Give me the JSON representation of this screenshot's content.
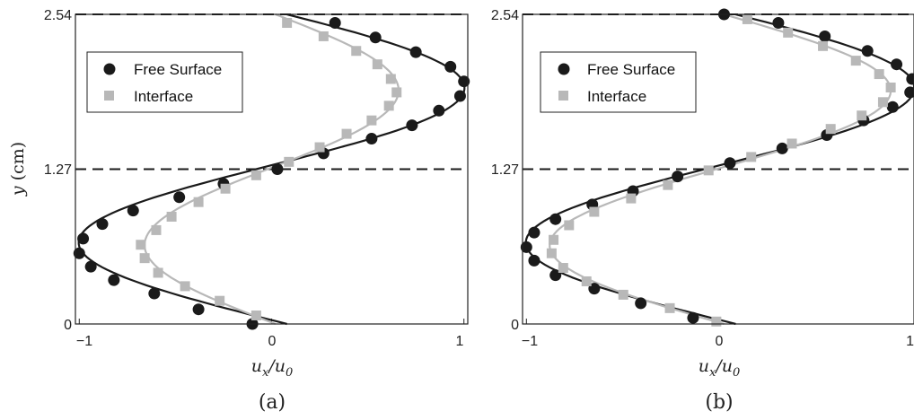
{
  "chart_data": [
    {
      "type": "scatter",
      "caption": "(a)",
      "xlim": [
        -1.02,
        1.02
      ],
      "ylim": [
        0,
        2.54
      ],
      "xticks": [
        "−1",
        "0",
        "1"
      ],
      "yticks": [
        "0",
        "1.27",
        "2.54"
      ],
      "xlabel_main": "u",
      "xlabel_sub1": "x",
      "xlabel_slash": "/u",
      "xlabel_sub2": "0",
      "ylabel_var": "y",
      "ylabel_unit": " (cm)",
      "hlines": [
        1.27,
        2.54
      ],
      "legend_position": "top-left",
      "series": [
        {
          "name": "Free Surface",
          "marker": "circle",
          "color": "#1a1a1a",
          "amplitude": 1.0,
          "points": [
            [
              -0.1,
              0.0
            ],
            [
              -0.38,
              0.12
            ],
            [
              -0.61,
              0.25
            ],
            [
              -0.82,
              0.36
            ],
            [
              -0.94,
              0.47
            ],
            [
              -1.0,
              0.58
            ],
            [
              -0.98,
              0.7
            ],
            [
              -0.88,
              0.82
            ],
            [
              -0.72,
              0.93
            ],
            [
              -0.48,
              1.04
            ],
            [
              -0.25,
              1.15
            ],
            [
              0.03,
              1.27
            ],
            [
              0.27,
              1.4
            ],
            [
              0.52,
              1.52
            ],
            [
              0.73,
              1.63
            ],
            [
              0.87,
              1.75
            ],
            [
              0.98,
              1.87
            ],
            [
              1.0,
              1.99
            ],
            [
              0.93,
              2.11
            ],
            [
              0.75,
              2.23
            ],
            [
              0.54,
              2.35
            ],
            [
              0.33,
              2.47
            ]
          ]
        },
        {
          "name": "Interface",
          "marker": "square",
          "color": "#b8b8b8",
          "amplitude": 0.66,
          "points": [
            [
              -0.08,
              0.07
            ],
            [
              -0.27,
              0.19
            ],
            [
              -0.45,
              0.31
            ],
            [
              -0.59,
              0.42
            ],
            [
              -0.66,
              0.54
            ],
            [
              -0.68,
              0.65
            ],
            [
              -0.6,
              0.77
            ],
            [
              -0.52,
              0.88
            ],
            [
              -0.38,
              1.0
            ],
            [
              -0.24,
              1.11
            ],
            [
              -0.08,
              1.22
            ],
            [
              0.09,
              1.33
            ],
            [
              0.25,
              1.45
            ],
            [
              0.39,
              1.56
            ],
            [
              0.52,
              1.67
            ],
            [
              0.61,
              1.79
            ],
            [
              0.65,
              1.9
            ],
            [
              0.62,
              2.01
            ],
            [
              0.55,
              2.13
            ],
            [
              0.44,
              2.24
            ],
            [
              0.27,
              2.36
            ],
            [
              0.08,
              2.47
            ]
          ]
        }
      ]
    },
    {
      "type": "scatter",
      "caption": "(b)",
      "xlim": [
        -1.02,
        1.0
      ],
      "ylim": [
        0,
        2.54
      ],
      "xticks": [
        "−1",
        "0",
        "1"
      ],
      "yticks": [
        "0",
        "1.27",
        "2.54"
      ],
      "xlabel_main": "u",
      "xlabel_sub1": "x",
      "xlabel_slash": "/u",
      "xlabel_sub2": "0",
      "hlines": [
        1.27,
        2.54
      ],
      "legend_position": "top-left",
      "series": [
        {
          "name": "Free Surface",
          "marker": "circle",
          "color": "#1a1a1a",
          "amplitude": 1.0,
          "points": [
            [
              -0.14,
              0.05
            ],
            [
              -0.41,
              0.17
            ],
            [
              -0.65,
              0.29
            ],
            [
              -0.85,
              0.4
            ],
            [
              -0.96,
              0.52
            ],
            [
              -1.0,
              0.63
            ],
            [
              -0.96,
              0.75
            ],
            [
              -0.85,
              0.86
            ],
            [
              -0.66,
              0.98
            ],
            [
              -0.45,
              1.09
            ],
            [
              -0.22,
              1.21
            ],
            [
              0.05,
              1.32
            ],
            [
              0.32,
              1.44
            ],
            [
              0.55,
              1.55
            ],
            [
              0.74,
              1.67
            ],
            [
              0.89,
              1.78
            ],
            [
              0.98,
              1.9
            ],
            [
              0.99,
              2.01
            ],
            [
              0.91,
              2.13
            ],
            [
              0.76,
              2.24
            ],
            [
              0.54,
              2.36
            ],
            [
              0.3,
              2.47
            ],
            [
              0.02,
              2.54
            ]
          ]
        },
        {
          "name": "Interface",
          "marker": "square",
          "color": "#b8b8b8",
          "amplitude": 0.88,
          "points": [
            [
              -0.02,
              0.02
            ],
            [
              -0.26,
              0.13
            ],
            [
              -0.5,
              0.24
            ],
            [
              -0.69,
              0.35
            ],
            [
              -0.81,
              0.46
            ],
            [
              -0.87,
              0.58
            ],
            [
              -0.86,
              0.69
            ],
            [
              -0.78,
              0.81
            ],
            [
              -0.65,
              0.92
            ],
            [
              -0.46,
              1.03
            ],
            [
              -0.27,
              1.14
            ],
            [
              -0.06,
              1.26
            ],
            [
              0.16,
              1.37
            ],
            [
              0.37,
              1.48
            ],
            [
              0.57,
              1.6
            ],
            [
              0.73,
              1.71
            ],
            [
              0.84,
              1.82
            ],
            [
              0.88,
              1.94
            ],
            [
              0.82,
              2.05
            ],
            [
              0.7,
              2.16
            ],
            [
              0.53,
              2.28
            ],
            [
              0.35,
              2.39
            ],
            [
              0.14,
              2.5
            ]
          ]
        }
      ]
    }
  ]
}
